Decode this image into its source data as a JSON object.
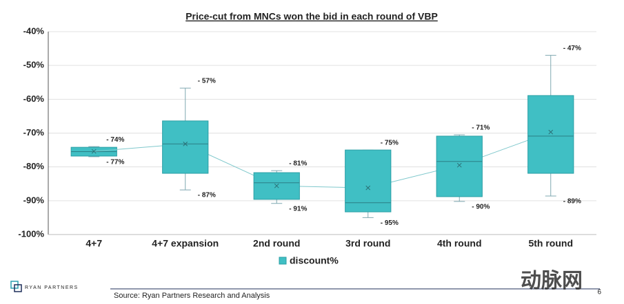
{
  "chart_data": {
    "type": "box",
    "title": "Price-cut from MNCs won the bid in each round of VBP",
    "categories": [
      "4+7",
      "4+7 expansion",
      "2nd round",
      "3rd round",
      "4th round",
      "5th round"
    ],
    "series": [
      {
        "name": "discount%",
        "color": "#40bfc4",
        "max": [
          -74,
          -56.7,
          -81.1,
          -75,
          -70.5,
          -47
        ],
        "q3": [
          -74.2,
          -66.4,
          -81.7,
          -75,
          -70.9,
          -58.9
        ],
        "median": [
          -75.5,
          -73.2,
          -84.7,
          -90.6,
          -78.4,
          -70.9
        ],
        "q1": [
          -76.8,
          -81.9,
          -89.6,
          -93.3,
          -88.8,
          -81.9
        ],
        "min": [
          -77,
          -86.8,
          -90.8,
          -95,
          -90.2,
          -88.6
        ],
        "mean": [
          -75.4,
          -73.2,
          -85.6,
          -86.2,
          -79.5,
          -69.7
        ],
        "max_labels": [
          "- 74%",
          "- 57%",
          "- 81%",
          "- 75%",
          "- 71%",
          "- 47%"
        ],
        "min_labels": [
          "- 77%",
          "- 87%",
          "- 91%",
          "- 95%",
          "- 90%",
          "- 89%"
        ]
      }
    ],
    "ylim": [
      -100,
      -40
    ],
    "yticks": [
      {
        "value": -100,
        "label": "-100%"
      },
      {
        "value": -90,
        "label": "-90%"
      },
      {
        "value": -80,
        "label": "-80%"
      },
      {
        "value": -70,
        "label": "-70%"
      },
      {
        "value": -60,
        "label": "-60%"
      },
      {
        "value": -50,
        "label": "-50%"
      },
      {
        "value": -40,
        "label": "-40%"
      }
    ],
    "grid": true,
    "legend": "bottom"
  },
  "footer": {
    "source": "Source: Ryan Partners Research and Analysis",
    "page": "6",
    "logo": "RYAN PARTNERS",
    "watermark": "动脉网"
  }
}
